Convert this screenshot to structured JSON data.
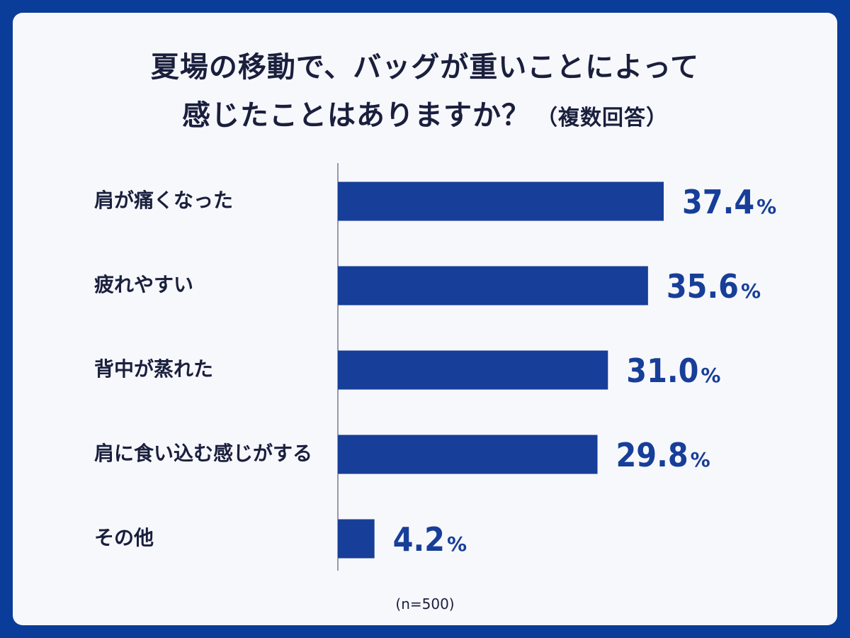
{
  "title": {
    "line1": "夏場の移動で、バッグが重いことによって",
    "line2": "感じたことはありますか？",
    "line2_suffix": "（複数回答）"
  },
  "note": "(n=500)",
  "colors": {
    "background": "#0a3d99",
    "card": "#f7f8fc",
    "bar": "#173e98",
    "text": "#1a1f3d"
  },
  "chart_data": {
    "type": "bar",
    "orientation": "horizontal",
    "categories": [
      "肩が痛くなった",
      "疲れやすい",
      "背中が蒸れた",
      "肩に食い込む感じがする",
      "その他"
    ],
    "values": [
      37.4,
      35.6,
      31.0,
      29.8,
      4.2
    ],
    "value_labels": [
      "37.4",
      "35.6",
      "31.0",
      "29.8",
      "4.2"
    ],
    "unit": "%",
    "grid": false,
    "legend": "none"
  }
}
